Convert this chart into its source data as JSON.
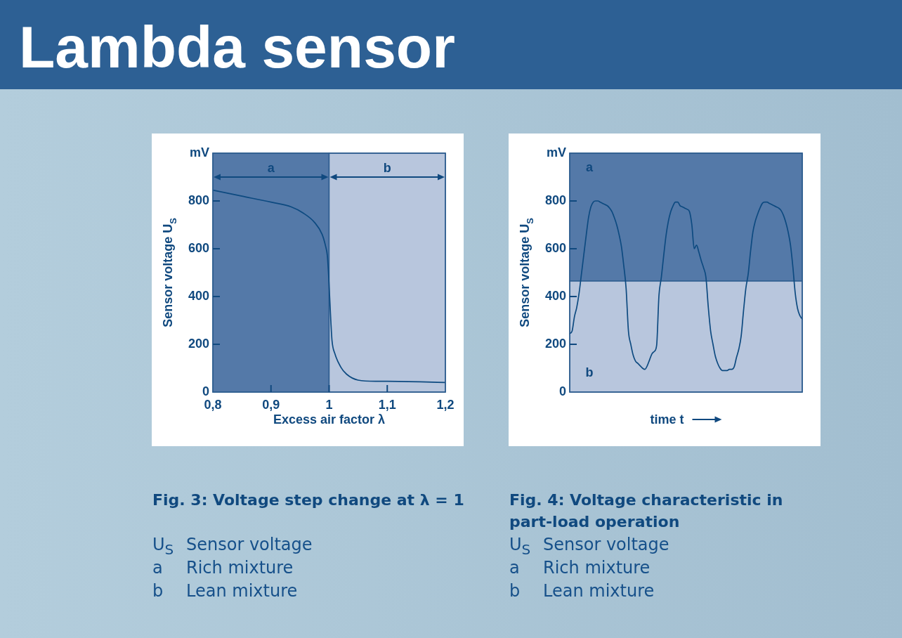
{
  "chart_data": [
    {
      "type": "other",
      "title": "Lambda sensor"
    },
    {
      "type": "line",
      "title": "Fig. 3: Voltage step change at λ = 1",
      "xlabel": "Excess air factor λ",
      "ylabel": "Sensor voltage U$_{S}$",
      "x": [
        0.8,
        0.85,
        0.9,
        0.935,
        0.955,
        0.975,
        0.988,
        0.994,
        0.997,
        0.999,
        1.001,
        1.003,
        1.005,
        1.01,
        1.02,
        1.03,
        1.05,
        1.08,
        1.1,
        1.2
      ],
      "values": [
        845,
        820,
        795,
        775,
        750,
        710,
        660,
        610,
        570,
        495,
        395,
        295,
        215,
        160,
        105,
        75,
        50,
        45,
        45,
        40
      ],
      "color": "#0d4a80",
      "xlim": [
        0.8,
        1.2
      ],
      "xticks": [
        {
          "value": 0.8,
          "label": "0,8"
        },
        {
          "value": 0.9,
          "label": "0,9"
        },
        1,
        {
          "value": 1.1,
          "label": "1,1"
        },
        {
          "value": 1.2,
          "label": "1,2"
        }
      ],
      "ylim": [
        0,
        1000
      ],
      "yticks": [
        0,
        200,
        400,
        600,
        800,
        {
          "value": 1000,
          "label": "mV"
        }
      ],
      "bands": [
        {
          "axis": "x",
          "from": 0.8,
          "to": 1,
          "label": "a",
          "color": "#5479a8"
        },
        {
          "axis": "x",
          "from": 1,
          "to": 1.2,
          "label": "b",
          "color": "#b8c6dd"
        }
      ],
      "annotations": [
        "U$_{S}$ Sensor voltage",
        "a Rich mixture",
        "b Lean mixture"
      ]
    },
    {
      "type": "line",
      "title": "Fig. 4: Voltage characteristic in part-load operation",
      "xlabel": "time t",
      "ylabel": "Sensor voltage U$_{S}$",
      "categories": [
        null,
        null,
        null,
        null,
        null,
        null,
        null,
        null,
        null,
        null,
        null,
        null,
        null,
        null,
        null,
        null,
        null,
        null,
        null,
        null,
        null,
        null,
        null,
        null,
        null,
        null,
        null,
        null,
        null,
        null,
        null,
        null,
        null,
        null,
        null,
        null,
        null,
        null,
        null,
        null,
        null,
        null,
        null,
        null,
        null,
        null,
        null,
        null,
        null,
        null,
        null,
        null,
        null,
        null,
        null,
        null,
        null,
        null,
        null,
        null,
        null,
        null,
        null,
        null,
        null,
        null,
        null,
        null,
        null,
        null,
        null,
        null,
        null,
        null,
        null,
        null,
        null,
        null,
        null,
        null,
        null,
        null,
        null,
        null,
        null,
        null,
        null,
        null,
        null,
        null,
        null,
        null,
        null,
        null,
        null,
        null,
        null,
        null,
        null,
        null
      ],
      "values": [
        245,
        255,
        315,
        355,
        415,
        495,
        575,
        655,
        730,
        775,
        795,
        800,
        800,
        795,
        790,
        785,
        780,
        770,
        755,
        730,
        700,
        660,
        610,
        530,
        435,
        255,
        200,
        155,
        130,
        120,
        110,
        100,
        95,
        110,
        135,
        160,
        170,
        195,
        405,
        480,
        570,
        655,
        715,
        755,
        780,
        795,
        795,
        780,
        775,
        770,
        765,
        755,
        700,
        600,
        615,
        585,
        550,
        520,
        480,
        355,
        255,
        200,
        150,
        120,
        100,
        90,
        90,
        90,
        95,
        95,
        105,
        145,
        180,
        235,
        340,
        435,
        495,
        590,
        670,
        715,
        745,
        770,
        790,
        795,
        795,
        790,
        785,
        780,
        775,
        770,
        760,
        740,
        710,
        670,
        615,
        525,
        415,
        350,
        320,
        305
      ],
      "color": "#0d4a80",
      "ylim": [
        0,
        1000
      ],
      "yticks": [
        0,
        200,
        400,
        600,
        800,
        {
          "value": 1000,
          "label": "mV"
        }
      ],
      "tick_labels": "y",
      "bands": [
        {
          "axis": "y",
          "from": 465,
          "to": 1000,
          "label": "a",
          "color": "#5479a8"
        },
        {
          "axis": "y",
          "from": 0,
          "to": 465,
          "label": "b",
          "color": "#b8c6dd"
        }
      ],
      "annotations": [
        "U$_{S}$ Sensor voltage",
        "a Rich mixture",
        "b Lean mixture"
      ]
    }
  ]
}
